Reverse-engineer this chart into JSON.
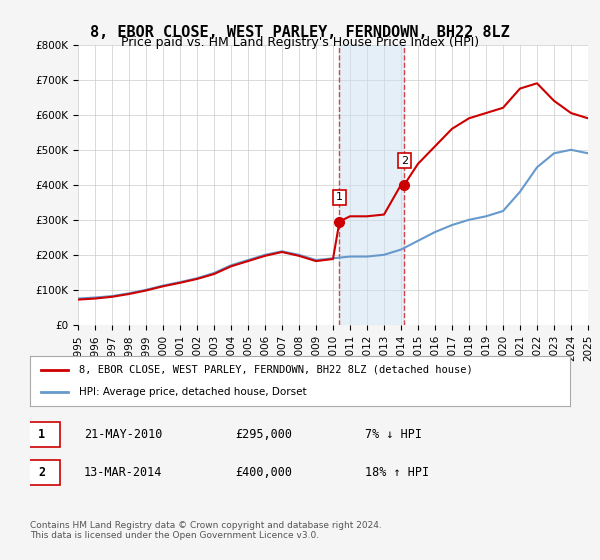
{
  "title": "8, EBOR CLOSE, WEST PARLEY, FERNDOWN, BH22 8LZ",
  "subtitle": "Price paid vs. HM Land Registry's House Price Index (HPI)",
  "ylabel": "",
  "xlabel": "",
  "ylim": [
    0,
    800000
  ],
  "yticks": [
    0,
    100000,
    200000,
    300000,
    400000,
    500000,
    600000,
    700000,
    800000
  ],
  "ytick_labels": [
    "£0",
    "£100K",
    "£200K",
    "£300K",
    "£400K",
    "£500K",
    "£600K",
    "£700K",
    "£800K"
  ],
  "xlim": [
    1995,
    2025
  ],
  "xticks": [
    1995,
    1996,
    1997,
    1998,
    1999,
    2000,
    2001,
    2002,
    2003,
    2004,
    2005,
    2006,
    2007,
    2008,
    2009,
    2010,
    2011,
    2012,
    2013,
    2014,
    2015,
    2016,
    2017,
    2018,
    2019,
    2020,
    2021,
    2022,
    2023,
    2024,
    2025
  ],
  "marker1_x": 2010.38,
  "marker1_y": 295000,
  "marker1_label": "1",
  "marker2_x": 2014.19,
  "marker2_y": 400000,
  "marker2_label": "2",
  "shade_x1": 2010.38,
  "shade_x2": 2014.19,
  "shade_color": "#cce0f0",
  "shade_alpha": 0.5,
  "vline_color": "#cc0000",
  "vline_alpha": 0.7,
  "hpi_years": [
    1995,
    1996,
    1997,
    1998,
    1999,
    2000,
    2001,
    2002,
    2003,
    2004,
    2005,
    2006,
    2007,
    2008,
    2009,
    2010,
    2011,
    2012,
    2013,
    2014,
    2015,
    2016,
    2017,
    2018,
    2019,
    2020,
    2021,
    2022,
    2023,
    2024,
    2025
  ],
  "hpi_values": [
    75000,
    78000,
    82000,
    90000,
    100000,
    112000,
    122000,
    133000,
    148000,
    170000,
    185000,
    200000,
    210000,
    200000,
    185000,
    190000,
    195000,
    195000,
    200000,
    215000,
    240000,
    265000,
    285000,
    300000,
    310000,
    325000,
    380000,
    450000,
    490000,
    500000,
    490000
  ],
  "price_years": [
    1995,
    1996,
    1997,
    1998,
    1999,
    2000,
    2001,
    2002,
    2003,
    2004,
    2005,
    2006,
    2007,
    2008,
    2009,
    2010,
    2010.38,
    2011,
    2012,
    2013,
    2014,
    2014.19,
    2015,
    2016,
    2017,
    2018,
    2019,
    2020,
    2021,
    2022,
    2023,
    2024,
    2025
  ],
  "price_values": [
    72000,
    75000,
    80000,
    88000,
    98000,
    110000,
    120000,
    131000,
    145000,
    167000,
    182000,
    197000,
    208000,
    197000,
    182000,
    188000,
    295000,
    310000,
    310000,
    315000,
    400000,
    400000,
    460000,
    510000,
    560000,
    590000,
    605000,
    620000,
    675000,
    690000,
    640000,
    605000,
    590000
  ],
  "red_color": "#cc0000",
  "blue_color": "#6699cc",
  "bg_color": "#f5f5f5",
  "plot_bg": "#ffffff",
  "legend_label_red": "8, EBOR CLOSE, WEST PARLEY, FERNDOWN, BH22 8LZ (detached house)",
  "legend_label_blue": "HPI: Average price, detached house, Dorset",
  "table_row1": [
    "1",
    "21-MAY-2010",
    "£295,000",
    "7% ↓ HPI"
  ],
  "table_row2": [
    "2",
    "13-MAR-2014",
    "£400,000",
    "18% ↑ HPI"
  ],
  "footer": "Contains HM Land Registry data © Crown copyright and database right 2024.\nThis data is licensed under the Open Government Licence v3.0.",
  "title_fontsize": 11,
  "subtitle_fontsize": 9,
  "tick_fontsize": 7.5
}
